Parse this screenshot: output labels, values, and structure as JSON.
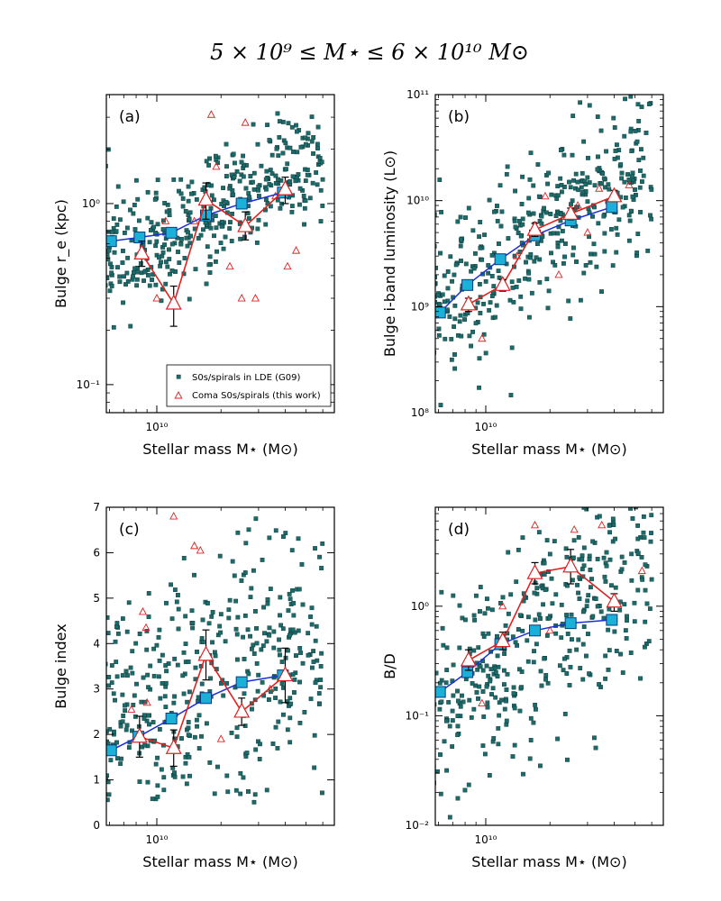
{
  "figure": {
    "title": "5 × 10⁹ ≤ M⋆ ≤ 6 × 10¹⁰ M⊙"
  },
  "legend": {
    "g09": "S0s/spirals in LDE (G09)",
    "coma": "Coma S0s/spirals (this work)"
  },
  "colors": {
    "scatter_fill": "#1c6b6b",
    "median_fill": "#1ab0d8",
    "median_line": "#1a2fd6",
    "coma": "#e02020",
    "errbar": "#000000"
  },
  "chart_data": [
    {
      "type": "scatter",
      "panel": "(a)",
      "xlabel": "Stellar mass M⋆ (M⊙)",
      "ylabel": "Bulge r_e (kpc)",
      "xscale": "log",
      "yscale": "log",
      "xlim": [
        5800000000.0,
        68000000000.0
      ],
      "ylim": [
        0.07,
        4.0
      ],
      "xticks": [
        {
          "v": 10000000000.0,
          "label": "10¹⁰"
        }
      ],
      "yticks": [
        {
          "v": 0.1,
          "label": "10⁻¹"
        },
        {
          "v": 1,
          "label": "10⁰"
        }
      ],
      "scatter_seed": 11,
      "scatter_ycenter": 0.85,
      "scatter_yslope": 0.55,
      "scatter_yspread": 0.17,
      "median_x": [
        6100000000.0,
        8300000000.0,
        11700000000.0,
        17000000000.0,
        25000000000.0,
        39000000000.0
      ],
      "median_y": [
        0.62,
        0.65,
        0.69,
        0.86,
        1.0,
        1.15
      ],
      "coma_x": [
        8500000000.0,
        12000000000.0,
        17000000000.0,
        26000000000.0,
        40000000000.0
      ],
      "coma_y": [
        0.53,
        0.28,
        1.05,
        0.75,
        1.2
      ],
      "coma_err_lo": [
        0.45,
        0.21,
        0.82,
        0.63,
        1.0
      ],
      "coma_err_hi": [
        0.62,
        0.35,
        1.3,
        0.9,
        1.4
      ],
      "coma_indiv": [
        [
          18000000000.0,
          3.1
        ],
        [
          26000000000.0,
          2.8
        ],
        [
          10000000000.0,
          0.3
        ],
        [
          25000000000.0,
          0.3
        ],
        [
          29000000000.0,
          0.3
        ],
        [
          41000000000.0,
          0.45
        ],
        [
          19000000000.0,
          1.6
        ],
        [
          15000000000.0,
          0.8
        ],
        [
          36000000000.0,
          1.1
        ],
        [
          22000000000.0,
          0.45
        ],
        [
          11000000000.0,
          0.8
        ],
        [
          45000000000.0,
          0.55
        ]
      ],
      "legend": "lower-right"
    },
    {
      "type": "scatter",
      "panel": "(b)",
      "xlabel": "Stellar mass M⋆ (M⊙)",
      "ylabel": "Bulge i-band luminosity (L⊙)",
      "xscale": "log",
      "yscale": "log",
      "xlim": [
        5800000000.0,
        68000000000.0
      ],
      "ylim": [
        100000000.0,
        100000000000.0
      ],
      "xticks": [
        {
          "v": 10000000000.0,
          "label": "10¹⁰"
        }
      ],
      "yticks": [
        {
          "v": 100000000.0,
          "label": "10⁸"
        },
        {
          "v": 1000000000.0,
          "label": "10⁹"
        },
        {
          "v": 10000000000.0,
          "label": "10¹⁰"
        },
        {
          "v": 100000000000.0,
          "label": "10¹¹"
        }
      ],
      "scatter_seed": 23,
      "scatter_ycenter": 4500000000.0,
      "scatter_yslope": 1.3,
      "scatter_yspread": 0.38,
      "median_x": [
        6100000000.0,
        8200000000.0,
        11700000000.0,
        17000000000.0,
        25000000000.0,
        39000000000.0
      ],
      "median_y": [
        880000000.0,
        1600000000.0,
        2800000000.0,
        4700000000.0,
        6500000000.0,
        8700000000.0
      ],
      "coma_x": [
        8300000000.0,
        12000000000.0,
        17000000000.0,
        25000000000.0,
        40000000000.0
      ],
      "coma_y": [
        1050000000.0,
        1600000000.0,
        5300000000.0,
        7500000000.0,
        11000000000.0
      ],
      "coma_err_lo": [
        900000000.0,
        1400000000.0,
        4600000000.0,
        6600000000.0,
        9800000000.0
      ],
      "coma_err_hi": [
        1200000000.0,
        1800000000.0,
        6100000000.0,
        8500000000.0,
        12500000000.0
      ],
      "coma_indiv": [
        [
          9600000000.0,
          500000000.0
        ],
        [
          14000000000.0,
          3000000000.0
        ],
        [
          19000000000.0,
          11000000000.0
        ],
        [
          27000000000.0,
          9000000000.0
        ],
        [
          34000000000.0,
          13000000000.0
        ],
        [
          47000000000.0,
          14000000000.0
        ],
        [
          22000000000.0,
          2000000000.0
        ],
        [
          30000000000.0,
          5000000000.0
        ]
      ]
    },
    {
      "type": "scatter",
      "panel": "(c)",
      "xlabel": "Stellar mass M⋆ (M⊙)",
      "ylabel": "Bulge index",
      "xscale": "log",
      "yscale": "linear",
      "xlim": [
        5800000000.0,
        68000000000.0
      ],
      "ylim": [
        0,
        7
      ],
      "xticks": [
        {
          "v": 10000000000.0,
          "label": "10¹⁰"
        }
      ],
      "yticks": [
        {
          "v": 0,
          "label": "0"
        },
        {
          "v": 1,
          "label": "1"
        },
        {
          "v": 2,
          "label": "2"
        },
        {
          "v": 3,
          "label": "3"
        },
        {
          "v": 4,
          "label": "4"
        },
        {
          "v": 5,
          "label": "5"
        },
        {
          "v": 6,
          "label": "6"
        },
        {
          "v": 7,
          "label": "7"
        }
      ],
      "scatter_seed": 37,
      "scatter_ycenter": 3.1,
      "scatter_yslope": 1.4,
      "scatter_yspread": 1.35,
      "median_x": [
        6100000000.0,
        8200000000.0,
        11700000000.0,
        17000000000.0,
        25000000000.0,
        39000000000.0
      ],
      "median_y": [
        1.65,
        1.95,
        2.35,
        2.8,
        3.15,
        3.3
      ],
      "coma_x": [
        8300000000.0,
        12000000000.0,
        17000000000.0,
        25000000000.0,
        40000000000.0
      ],
      "coma_y": [
        1.95,
        1.7,
        3.75,
        2.5,
        3.3
      ],
      "coma_err_lo": [
        1.5,
        1.3,
        3.2,
        2.2,
        2.7
      ],
      "coma_err_hi": [
        2.4,
        2.1,
        4.3,
        2.8,
        3.9
      ],
      "coma_indiv": [
        [
          8600000000.0,
          4.7
        ],
        [
          8900000000.0,
          4.35
        ],
        [
          12000000000.0,
          6.8
        ],
        [
          15000000000.0,
          6.15
        ],
        [
          16000000000.0,
          6.05
        ],
        [
          7600000000.0,
          2.55
        ],
        [
          34000000000.0,
          3.0
        ],
        [
          20000000000.0,
          1.9
        ],
        [
          9000000000.0,
          2.7
        ]
      ]
    },
    {
      "type": "scatter",
      "panel": "(d)",
      "xlabel": "Stellar mass M⋆ (M⊙)",
      "ylabel": "B/D",
      "xscale": "log",
      "yscale": "log",
      "xlim": [
        5800000000.0,
        68000000000.0
      ],
      "ylim": [
        0.01,
        8
      ],
      "xticks": [
        {
          "v": 10000000000.0,
          "label": "10¹⁰"
        }
      ],
      "yticks": [
        {
          "v": 0.01,
          "label": "10⁻²"
        },
        {
          "v": 0.1,
          "label": "10⁻¹"
        },
        {
          "v": 1,
          "label": "10⁰"
        }
      ],
      "scatter_seed": 53,
      "scatter_ycenter": 0.45,
      "scatter_yslope": 1.5,
      "scatter_yspread": 0.5,
      "median_x": [
        6100000000.0,
        8200000000.0,
        11700000000.0,
        17000000000.0,
        25000000000.0,
        39000000000.0
      ],
      "median_y": [
        0.165,
        0.25,
        0.45,
        0.6,
        0.7,
        0.75
      ],
      "coma_x": [
        8300000000.0,
        12000000000.0,
        17000000000.0,
        25000000000.0,
        40000000000.0
      ],
      "coma_y": [
        0.32,
        0.48,
        2.0,
        2.3,
        1.1
      ],
      "coma_err_lo": [
        0.26,
        0.4,
        1.6,
        1.6,
        0.9
      ],
      "coma_err_hi": [
        0.4,
        0.58,
        2.5,
        3.3,
        1.3
      ],
      "coma_indiv": [
        [
          17000000000.0,
          5.5
        ],
        [
          26000000000.0,
          5.0
        ],
        [
          35000000000.0,
          5.5
        ],
        [
          12000000000.0,
          1.0
        ],
        [
          9600000000.0,
          0.13
        ],
        [
          54000000000.0,
          2.1
        ],
        [
          20000000000.0,
          0.6
        ]
      ]
    }
  ]
}
